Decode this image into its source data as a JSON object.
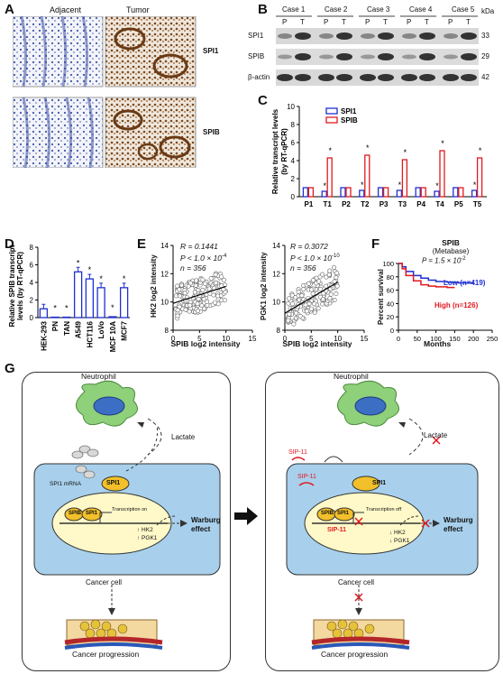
{
  "panels": {
    "A": {
      "letter": "A",
      "col_headers": [
        "Adjacent",
        "Tumor"
      ],
      "row_labels": [
        "SPI1",
        "SPIB"
      ]
    },
    "B": {
      "letter": "B",
      "cases": [
        "Case 1",
        "Case 2",
        "Case 3",
        "Case 4",
        "Case 5"
      ],
      "lane_labels": [
        "P",
        "T"
      ],
      "rows": [
        "SPI1",
        "SPIB",
        "β-actin"
      ],
      "kda_label": "kDa",
      "kda_values": [
        "33",
        "29",
        "42"
      ]
    },
    "C": {
      "letter": "C"
    },
    "D": {
      "letter": "D"
    },
    "E": {
      "letter": "E",
      "left": {
        "r": "R = 0.1441",
        "p": "P < 1.0 × 10",
        "p_exp": "-4",
        "n": "n = 356",
        "ylabel": "HK2 log2 intensity",
        "xlabel": "SPIB log2 intensity"
      },
      "right": {
        "r": "R = 0.3072",
        "p": "P < 1.0 × 10",
        "p_exp": "-10",
        "n": "n = 356",
        "ylabel": "PGK1 log2 intensity",
        "xlabel": "SPIB log2 intensity"
      }
    },
    "F": {
      "letter": "F",
      "title": "SPIB",
      "subtitle": "(Metabase)",
      "p": "P = 1.5 × 10",
      "p_exp": "-2",
      "low_label": "Low (n=419)",
      "high_label": "High (n=126)",
      "ylabel": "Percent survival",
      "xlabel": "Months",
      "colors": {
        "low": "#1f2fd0",
        "high": "#e0191f"
      }
    },
    "G": {
      "letter": "G",
      "left": {
        "neutrophil": "Neutrophil",
        "lactate": "Lactate",
        "spi1_mrna": "SPI1 mRNA",
        "spi1": "SPI1",
        "spib": "SPIB",
        "transcription": "Transcription on",
        "hk2": "↑ HK2",
        "pgk1": "↑ PGK1",
        "warburg": "Warburg effect",
        "cancer_cell": "Cancer cell",
        "progression": "Cancer progression"
      },
      "right": {
        "neutrophil": "Neutrophil",
        "lactate": "Lactate",
        "sip11_a": "SIP-11",
        "sip11_b": "SIP-11",
        "sip11_c": "SIP-11",
        "spi1": "SPI1",
        "spib": "SPIB",
        "transcription": "Transcription off",
        "hk2": "↓ HK2",
        "pgk1": "↓ PGK1",
        "warburg": "Warburg effect",
        "cancer_cell": "Cancer cell",
        "progression": "Cancer progression"
      }
    }
  },
  "chart_data": [
    {
      "panel": "C",
      "type": "bar",
      "categories": [
        "P1",
        "T1",
        "P2",
        "T2",
        "P3",
        "T3",
        "P4",
        "T4",
        "P5",
        "T5"
      ],
      "series": [
        {
          "name": "SPI1",
          "values": [
            1,
            0.6,
            1,
            0.7,
            1,
            0.7,
            1,
            0.6,
            1,
            0.7
          ],
          "color": "#1f2fd0"
        },
        {
          "name": "SPIB",
          "values": [
            1,
            4.3,
            1,
            4.6,
            1,
            4.1,
            1,
            5.1,
            1,
            4.3
          ],
          "color": "#e0191f"
        }
      ],
      "ylabel": "Relative transcript levels (by RT-qPCR)",
      "ylim": [
        0,
        10
      ],
      "yticks": [
        "0",
        "2",
        "4",
        "6",
        "8",
        "10"
      ],
      "significance": [
        "",
        "*",
        "",
        "*",
        "",
        "*",
        "",
        "*",
        "",
        "*"
      ],
      "significance_spi1": [
        "",
        "*",
        "",
        "*",
        "",
        "*",
        "",
        "*",
        "",
        "*"
      ]
    },
    {
      "panel": "D",
      "type": "bar",
      "categories": [
        "HEK-293",
        "PN",
        "TAN",
        "A549",
        "HCT116",
        "LoVo",
        "MCF 10A",
        "MCF7"
      ],
      "values": [
        1.0,
        0.05,
        0.05,
        5.2,
        4.4,
        3.4,
        0.1,
        3.4
      ],
      "color": "#1f2fd0",
      "significance": [
        "",
        "*",
        "*",
        "*",
        "*",
        "*",
        "*",
        "*"
      ],
      "ylabel": "Relative SPIB transcript levels (by RT-qPCR)",
      "ylim": [
        0,
        8
      ],
      "yticks": [
        "0",
        "2",
        "4",
        "6",
        "8"
      ]
    },
    {
      "panel": "E-left",
      "type": "scatter",
      "xlim": [
        0,
        15
      ],
      "ylim": [
        8,
        14
      ],
      "xticks": [
        "0",
        "5",
        "10",
        "15"
      ],
      "yticks": [
        "8",
        "10",
        "12",
        "14"
      ],
      "fit": {
        "x": [
          0,
          10
        ],
        "y": [
          9.9,
          11.1
        ]
      }
    },
    {
      "panel": "E-right",
      "type": "scatter",
      "xlim": [
        0,
        15
      ],
      "ylim": [
        8,
        14
      ],
      "xticks": [
        "0",
        "5",
        "10",
        "15"
      ],
      "yticks": [
        "8",
        "10",
        "12",
        "14"
      ],
      "fit": {
        "x": [
          0,
          10
        ],
        "y": [
          9.2,
          11.4
        ]
      }
    },
    {
      "panel": "F",
      "type": "line",
      "xlim": [
        0,
        250
      ],
      "ylim": [
        0,
        100
      ],
      "xticks": [
        "0",
        "50",
        "100",
        "150",
        "200",
        "250"
      ],
      "yticks": [
        "0",
        "20",
        "40",
        "60",
        "80",
        "100"
      ],
      "series": [
        {
          "name": "Low (n=419)",
          "x": [
            0,
            10,
            20,
            40,
            60,
            80,
            100,
            130,
            160,
            200
          ],
          "y": [
            100,
            95,
            88,
            82,
            78,
            75,
            73,
            72,
            71,
            71
          ]
        },
        {
          "name": "High (n=126)",
          "x": [
            0,
            10,
            20,
            40,
            60,
            80,
            100,
            130,
            150
          ],
          "y": [
            100,
            92,
            82,
            74,
            68,
            66,
            65,
            64,
            64
          ]
        }
      ]
    }
  ]
}
